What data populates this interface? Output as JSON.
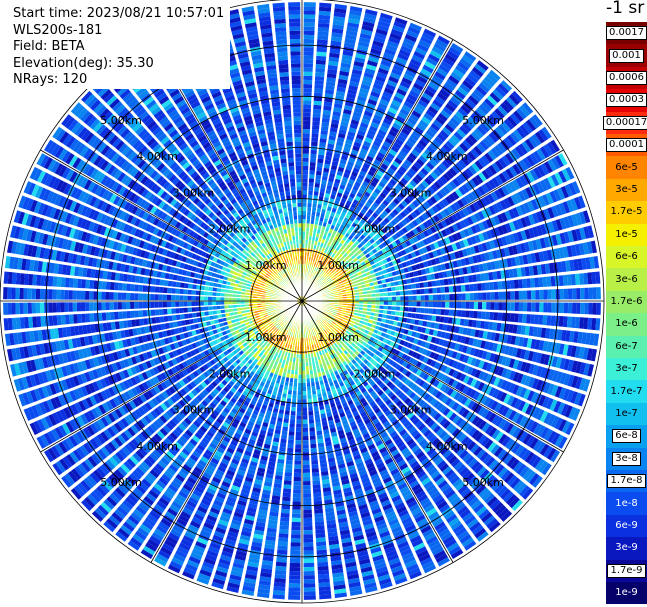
{
  "header": {
    "start_time": "Start time: 2023/08/21 10:57:01",
    "instrument": "WLS200s-181",
    "field": "Field: BETA",
    "elevation": "Elevation(deg): 35.30",
    "nrays": "NRays: 120"
  },
  "colorbar": {
    "title": "-1 sr",
    "labels": [
      "0.0017",
      "0.001",
      "0.0006",
      "0.0003",
      "0.00017",
      "0.0001",
      "6e-5",
      "3e-5",
      "1.7e-5",
      "1e-5",
      "6e-6",
      "3e-6",
      "1.7e-6",
      "1e-6",
      "6e-7",
      "3e-7",
      "1.7e-7",
      "1e-7",
      "6e-8",
      "3e-8",
      "1.7e-8",
      "1e-8",
      "6e-9",
      "3e-9",
      "1.7e-9",
      "1e-9"
    ],
    "colors": [
      "#7a0000",
      "#9a0000",
      "#c20000",
      "#e60000",
      "#ff2a10",
      "#ff5a00",
      "#ff8400",
      "#ffa800",
      "#ffcc00",
      "#f5f000",
      "#d8f528",
      "#b8f048",
      "#98ec68",
      "#7cf088",
      "#5cf0b0",
      "#3cf0d8",
      "#22dcf0",
      "#12c0f0",
      "#0aa0f0",
      "#0a84f0",
      "#0a68f0",
      "#0a4cf0",
      "#0a30e0",
      "#0a18c0",
      "#0a0898",
      "#06006a"
    ]
  },
  "chart_data": {
    "type": "heatmap",
    "subtype": "polar PPI scan",
    "title": "",
    "field": "BETA",
    "unit": "-1 sr",
    "elevation_deg": 35.3,
    "n_rays": 120,
    "range_ring_labels": [
      "1.00km",
      "2.00km",
      "3.00km",
      "4.00km",
      "5.00km"
    ],
    "range_rings_km": [
      1,
      2,
      3,
      4,
      5
    ],
    "max_range_km": 5.9,
    "color_scale": "log",
    "value_range": [
      1e-09,
      0.0017
    ],
    "regions": [
      {
        "range_km": [
          0,
          0.3
        ],
        "typical_value": 1e-05
      },
      {
        "range_km": [
          0.3,
          1.5
        ],
        "typical_value": 1e-05
      },
      {
        "range_km": [
          1.5,
          2.0
        ],
        "typical_value": 1.7e-07
      },
      {
        "range_km": [
          2.0,
          5.9
        ],
        "typical_value": 1e-08
      }
    ],
    "grid": true
  }
}
